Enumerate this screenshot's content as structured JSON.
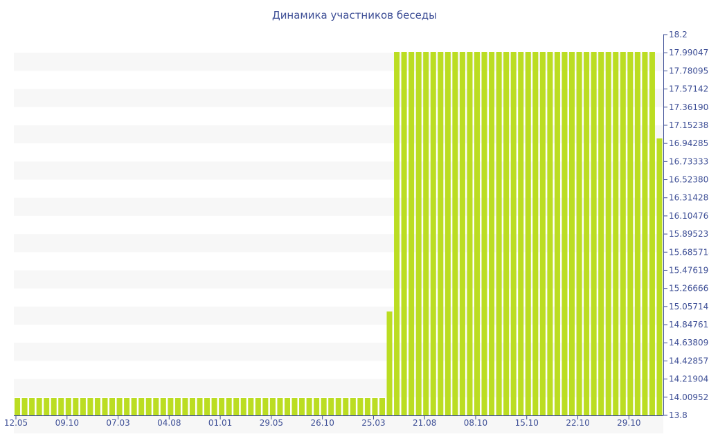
{
  "chart_data": {
    "type": "bar",
    "title": "Динамика участников беседы",
    "xlabel": "",
    "ylabel": "",
    "ylim": [
      13.8,
      18.2
    ],
    "grid": "alternating horizontal bands",
    "bar_color": "#bbdd22",
    "band_color": "#f7f7f7",
    "axis_text_color": "#3e4f96",
    "y_tick_labels": [
      "18.2",
      "17.990476",
      "17.780952",
      "17.571428",
      "17.361904",
      "17.152380",
      "16.942857",
      "16.733333",
      "16.523809",
      "16.314285",
      "16.104761",
      "15.895238",
      "15.685714",
      "15.476190",
      "15.266666",
      "15.057142",
      "14.847619",
      "14.638095",
      "14.428571",
      "14.219047",
      "14.009523",
      "13.8"
    ],
    "x_tick_labels": [
      "12.05",
      "09.10",
      "07.03",
      "04.08",
      "01.01",
      "29.05",
      "26.10",
      "25.03",
      "21.08",
      "08.10",
      "15.10",
      "22.10",
      "29.10"
    ],
    "values": [
      14,
      14,
      14,
      14,
      14,
      14,
      14,
      14,
      14,
      14,
      14,
      14,
      14,
      14,
      14,
      14,
      14,
      14,
      14,
      14,
      14,
      14,
      14,
      14,
      14,
      14,
      14,
      14,
      14,
      14,
      14,
      14,
      14,
      14,
      14,
      14,
      14,
      14,
      14,
      14,
      14,
      14,
      14,
      14,
      14,
      14,
      14,
      14,
      14,
      14,
      14,
      15,
      18,
      18,
      18,
      18,
      18,
      18,
      18,
      18,
      18,
      18,
      18,
      18,
      18,
      18,
      18,
      18,
      18,
      18,
      18,
      18,
      18,
      18,
      18,
      18,
      18,
      18,
      18,
      18,
      18,
      18,
      18,
      18,
      18,
      18,
      18,
      18,
      17
    ]
  }
}
